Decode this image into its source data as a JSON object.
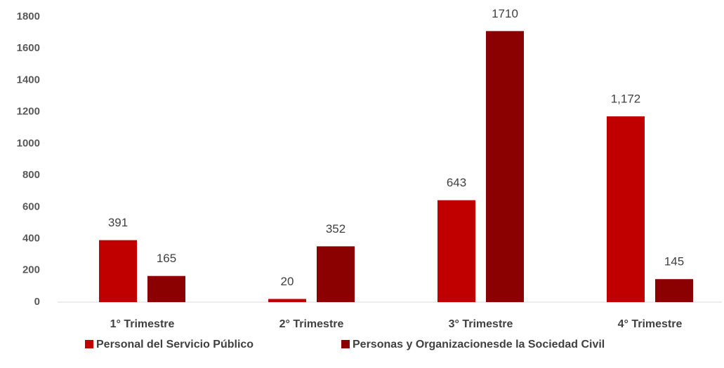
{
  "chart_data": {
    "type": "bar",
    "categories": [
      "1° Trimestre",
      "2° Trimestre",
      "3° Trimestre",
      "4° Trimestre"
    ],
    "series": [
      {
        "name": "Personal del Servicio Público",
        "color": "#c00000",
        "values": [
          391,
          20,
          643,
          1172
        ],
        "value_labels": [
          "391",
          "20",
          "643",
          "1,172"
        ]
      },
      {
        "name": "Personas y Organizacionesde la Sociedad Civil",
        "color": "#8b0000",
        "values": [
          165,
          352,
          1710,
          145
        ]
      }
    ],
    "ylim": [
      0,
      1800
    ],
    "yticks": [
      0,
      200,
      400,
      600,
      800,
      1000,
      1200,
      1400,
      1600,
      1800
    ],
    "grid": false
  }
}
